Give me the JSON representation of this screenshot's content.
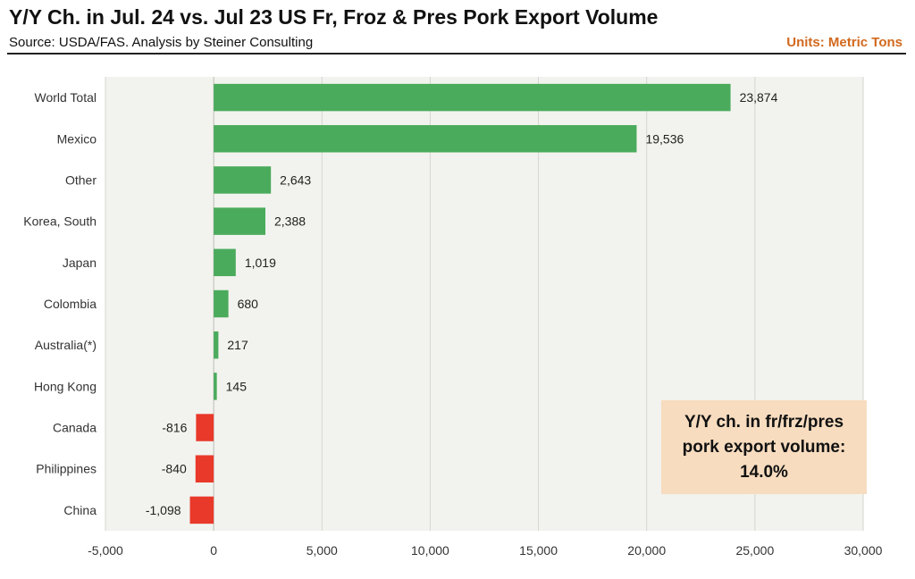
{
  "header": {
    "title": "Y/Y Ch. in Jul. 24 vs. Jul 23 US Fr, Froz & Pres Pork Export Volume",
    "source": "Source: USDA/FAS.  Analysis by Steiner Consulting",
    "units": "Units: Metric Tons"
  },
  "callout": {
    "line1": "Y/Y ch. in fr/frz/pres",
    "line2": "pork export volume:",
    "value": "14.0%"
  },
  "colors": {
    "positive": "#4aab5c",
    "negative": "#e8392b",
    "plot_background": "#f2f2ee",
    "gridline": "#d6d6d0",
    "units_text": "#d2691e",
    "callout_background": "#f8dcc0"
  },
  "chart_data": {
    "type": "bar",
    "orientation": "horizontal",
    "categories": [
      "World Total",
      "Mexico",
      "Other",
      "Korea, South",
      "Japan",
      "Colombia",
      "Australia(*)",
      "Hong Kong",
      "Canada",
      "Philippines",
      "China"
    ],
    "values": [
      23874,
      19536,
      2643,
      2388,
      1019,
      680,
      217,
      145,
      -816,
      -840,
      -1098
    ],
    "value_labels": [
      "23,874",
      "19,536",
      "2,643",
      "2,388",
      "1,019",
      "680",
      "217",
      "145",
      "-816",
      "-840",
      "-1,098"
    ],
    "xlim": [
      -5000,
      30000
    ],
    "xticks": [
      -5000,
      0,
      5000,
      10000,
      15000,
      20000,
      25000,
      30000
    ],
    "xtick_labels": [
      "-5,000",
      "0",
      "5,000",
      "10,000",
      "15,000",
      "20,000",
      "25,000",
      "30,000"
    ],
    "grid": "vertical",
    "legend": "none"
  }
}
